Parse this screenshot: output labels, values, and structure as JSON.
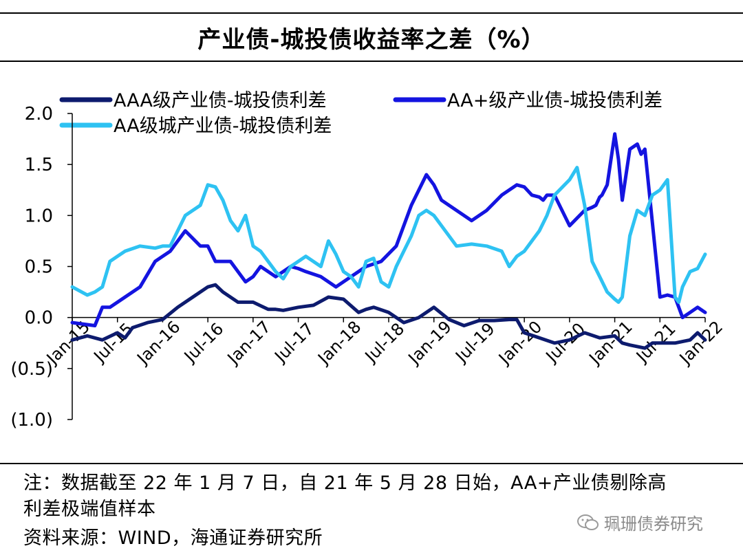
{
  "page": {
    "title": "产业债-城投债收益率之差（%）",
    "note_line1": "注：数据截至 22 年 1 月 7 日，自 21 年 5 月 28 日始，AA+产业债剔除高",
    "note_line2": "利差极端值样本",
    "source": "资料来源：WIND，海通证券研究所",
    "watermark": "珮珊债券研究"
  },
  "chart_data": {
    "type": "line",
    "title": "产业债-城投债收益率之差（%）",
    "xlabel": "",
    "ylabel": "",
    "ylim": [
      -1.0,
      2.0
    ],
    "y_ticks": [
      2.0,
      1.5,
      1.0,
      0.5,
      0.0,
      -0.5,
      -1.0
    ],
    "y_tick_labels": [
      "2.0",
      "1.5",
      "1.0",
      "0.5",
      "0.0",
      "(0.5)",
      "(1.0)"
    ],
    "x_range": [
      0,
      84
    ],
    "x_tick_positions": [
      0,
      6,
      12,
      18,
      24,
      30,
      36,
      42,
      48,
      54,
      60,
      66,
      72,
      78,
      84
    ],
    "x_tick_labels": [
      "Jan-15",
      "Jul-15",
      "Jan-16",
      "Jul-16",
      "Jan-17",
      "Jul-17",
      "Jan-18",
      "Jul-18",
      "Jan-19",
      "Jul-19",
      "Jan-20",
      "Jul-20",
      "Jan-21",
      "Jul-21",
      "Jan-22"
    ],
    "legend_position": "top",
    "series": [
      {
        "name": "AAA级产业债-城投债利差",
        "color": "#0d1b6e",
        "x": [
          0,
          2,
          4,
          6,
          7,
          8,
          10,
          12,
          14,
          16,
          18,
          19,
          20,
          22,
          24,
          26,
          27,
          28,
          30,
          32,
          34,
          36,
          38,
          39,
          40,
          42,
          44,
          46,
          48,
          50,
          52,
          54,
          56,
          58,
          59,
          60,
          62,
          64,
          66,
          68,
          70,
          72,
          73,
          74,
          76,
          77,
          78,
          80,
          82,
          83,
          84
        ],
        "values": [
          -0.22,
          -0.18,
          -0.22,
          -0.15,
          -0.2,
          -0.1,
          -0.05,
          -0.02,
          0.1,
          0.2,
          0.3,
          0.32,
          0.25,
          0.15,
          0.15,
          0.08,
          0.08,
          0.07,
          0.1,
          0.12,
          0.2,
          0.18,
          0.05,
          0.08,
          0.1,
          0.05,
          -0.05,
          0.0,
          0.1,
          -0.02,
          -0.08,
          -0.03,
          -0.03,
          -0.02,
          -0.02,
          -0.15,
          -0.2,
          -0.25,
          -0.22,
          -0.15,
          -0.2,
          -0.18,
          -0.25,
          -0.27,
          -0.3,
          -0.25,
          -0.25,
          -0.25,
          -0.22,
          -0.15,
          -0.22
        ]
      },
      {
        "name": "AA+级产业债-城投债利差",
        "color": "#1414e0",
        "x": [
          0,
          3,
          4,
          5,
          7,
          9,
          11,
          12,
          13,
          15,
          17,
          18,
          19,
          21,
          23,
          24,
          25,
          27,
          29,
          30,
          31,
          33,
          35,
          37,
          39,
          41,
          43,
          45,
          47,
          48,
          49,
          51,
          53,
          55,
          57,
          59,
          60,
          61,
          62,
          62.5,
          63,
          64,
          66,
          68,
          69,
          69.5,
          70,
          70.3,
          71,
          72,
          72.5,
          73,
          74,
          75,
          75.5,
          76,
          78,
          79,
          80,
          81,
          82,
          83,
          84
        ],
        "values": [
          -0.05,
          -0.08,
          0.1,
          0.1,
          0.2,
          0.3,
          0.55,
          0.6,
          0.65,
          0.85,
          0.7,
          0.7,
          0.55,
          0.55,
          0.35,
          0.4,
          0.5,
          0.4,
          0.5,
          0.48,
          0.45,
          0.4,
          0.3,
          0.4,
          0.5,
          0.55,
          0.7,
          1.1,
          1.4,
          1.3,
          1.15,
          1.05,
          0.95,
          1.05,
          1.2,
          1.3,
          1.28,
          1.2,
          1.18,
          1.15,
          1.2,
          1.2,
          0.9,
          1.05,
          1.08,
          1.1,
          1.18,
          1.2,
          1.3,
          1.8,
          1.55,
          1.15,
          1.65,
          1.7,
          1.6,
          1.65,
          0.2,
          0.22,
          0.2,
          0.0,
          0.05,
          0.1,
          0.05
        ]
      },
      {
        "name": "AA级城产业债-城投债利差",
        "color": "#2ec2f2",
        "x": [
          0,
          2,
          3,
          4,
          5,
          6,
          7,
          9,
          11,
          12,
          13,
          15,
          16,
          17,
          18,
          19,
          20,
          21,
          22,
          23,
          24,
          25,
          26,
          27,
          28,
          29,
          30,
          31,
          33,
          34,
          35,
          36,
          37,
          38,
          39,
          40,
          41,
          42,
          43,
          44,
          45,
          46,
          47,
          48,
          49,
          51,
          53,
          55,
          57,
          58,
          59,
          60,
          61,
          62,
          63,
          64,
          66,
          67,
          68,
          69,
          70,
          71,
          72,
          72.5,
          73,
          74,
          75,
          76,
          77,
          78,
          79,
          80,
          80.5,
          81,
          82,
          83,
          84
        ],
        "values": [
          0.3,
          0.22,
          0.25,
          0.3,
          0.55,
          0.6,
          0.65,
          0.7,
          0.68,
          0.7,
          0.7,
          1.0,
          1.05,
          1.1,
          1.3,
          1.28,
          1.15,
          0.95,
          0.85,
          1.0,
          0.7,
          0.65,
          0.55,
          0.45,
          0.38,
          0.5,
          0.55,
          0.6,
          0.5,
          0.75,
          0.62,
          0.45,
          0.4,
          0.3,
          0.55,
          0.58,
          0.35,
          0.3,
          0.5,
          0.65,
          0.8,
          1.0,
          1.05,
          1.0,
          0.9,
          0.7,
          0.72,
          0.7,
          0.65,
          0.5,
          0.6,
          0.65,
          0.75,
          0.85,
          1.0,
          1.2,
          1.35,
          1.47,
          1.1,
          0.55,
          0.4,
          0.25,
          0.18,
          0.15,
          0.2,
          0.8,
          1.05,
          1.0,
          1.2,
          1.25,
          1.35,
          0.2,
          0.15,
          0.3,
          0.45,
          0.48,
          0.62
        ]
      }
    ]
  }
}
